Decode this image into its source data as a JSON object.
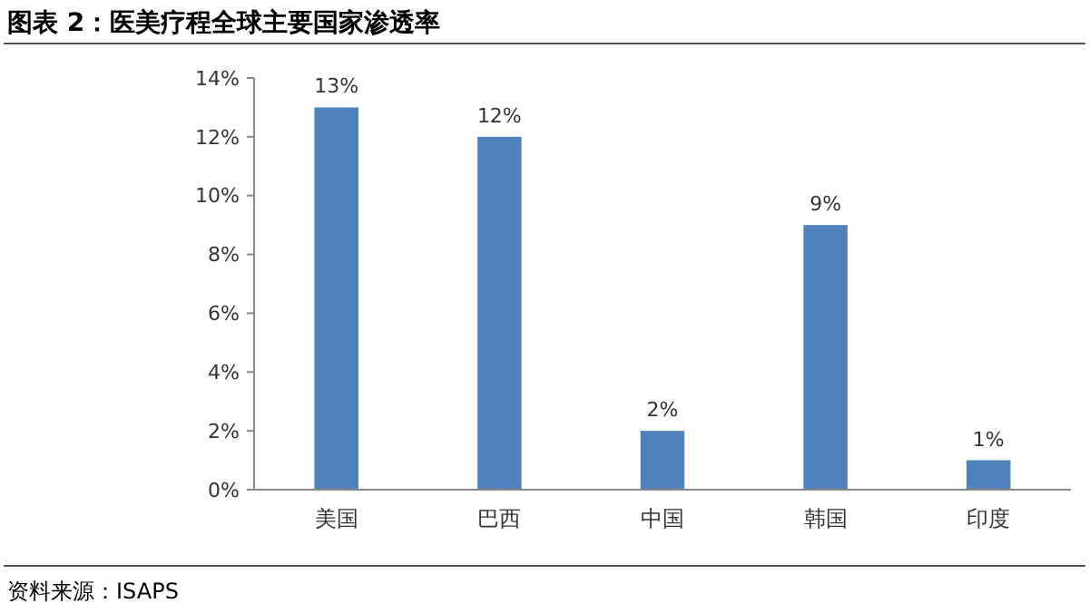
{
  "chart_data": {
    "type": "bar",
    "title": "图表 2：医美疗程全球主要国家渗透率",
    "categories": [
      "美国",
      "巴西",
      "中国",
      "韩国",
      "印度"
    ],
    "values": [
      13,
      12,
      2,
      9,
      1
    ],
    "value_labels": [
      "13%",
      "12%",
      "2%",
      "9%",
      "1%"
    ],
    "color": "#4f81bd",
    "ylim": [
      0,
      14
    ],
    "yticks": [
      {
        "value": 0,
        "label": "0%"
      },
      {
        "value": 2,
        "label": "2%"
      },
      {
        "value": 4,
        "label": "4%"
      },
      {
        "value": 6,
        "label": "6%"
      },
      {
        "value": 8,
        "label": "8%"
      },
      {
        "value": 10,
        "label": "10%"
      },
      {
        "value": 12,
        "label": "12%"
      },
      {
        "value": 14,
        "label": "14%"
      }
    ],
    "grid": false,
    "annotations": [
      "资料来源：ISAPS"
    ]
  }
}
